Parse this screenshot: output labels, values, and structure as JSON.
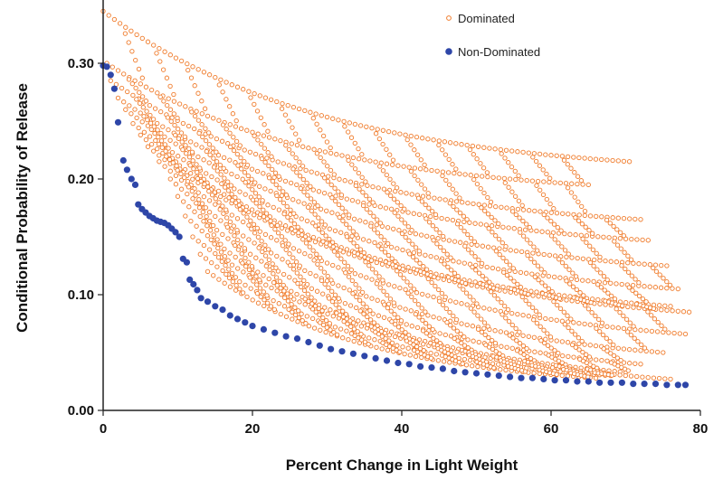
{
  "chart_data": {
    "type": "scatter",
    "title": "",
    "xlabel": "Percent Change in Light Weight",
    "ylabel": "Conditional Probability of Release",
    "xlim": [
      0,
      80
    ],
    "ylim": [
      0,
      0.35
    ],
    "x_ticks": [
      0,
      20,
      40,
      60,
      80
    ],
    "x_tick_labels": [
      "0",
      "20",
      "40",
      "60",
      "80"
    ],
    "y_ticks": [
      0,
      0.1,
      0.2,
      0.3
    ],
    "y_tick_labels": [
      "0.00",
      "0.10",
      "0.20",
      "0.30"
    ],
    "grid": false,
    "legend_position": "top-right",
    "series": [
      {
        "name": "Dominated",
        "marker": "open-circle",
        "color": "#f07c2c",
        "groups": [
          {
            "x_start": 0.0,
            "x_end": 70.5,
            "y_start": 0.345,
            "y_end": 0.215
          },
          {
            "x_start": 0.5,
            "x_end": 65.0,
            "y_start": 0.3,
            "y_end": 0.195
          },
          {
            "x_start": 1.0,
            "x_end": 72.0,
            "y_start": 0.285,
            "y_end": 0.165
          },
          {
            "x_start": 2.0,
            "x_end": 73.0,
            "y_start": 0.27,
            "y_end": 0.147
          },
          {
            "x_start": 3.0,
            "x_end": 75.5,
            "y_start": 0.26,
            "y_end": 0.125
          },
          {
            "x_start": 4.0,
            "x_end": 77.0,
            "y_start": 0.248,
            "y_end": 0.105
          },
          {
            "x_start": 5.0,
            "x_end": 76.0,
            "y_start": 0.238,
            "y_end": 0.09
          },
          {
            "x_start": 6.0,
            "x_end": 78.5,
            "y_start": 0.228,
            "y_end": 0.085
          },
          {
            "x_start": 7.5,
            "x_end": 78.0,
            "y_start": 0.215,
            "y_end": 0.066
          },
          {
            "x_start": 9.0,
            "x_end": 75.0,
            "y_start": 0.2,
            "y_end": 0.05
          },
          {
            "x_start": 10.0,
            "x_end": 72.0,
            "y_start": 0.185,
            "y_end": 0.04
          },
          {
            "x_start": 11.0,
            "x_end": 70.0,
            "y_start": 0.168,
            "y_end": 0.033
          },
          {
            "x_start": 12.0,
            "x_end": 76.0,
            "y_start": 0.15,
            "y_end": 0.027
          },
          {
            "x_start": 13.0,
            "x_end": 68.0,
            "y_start": 0.135,
            "y_end": 0.03
          },
          {
            "x_start": 14.0,
            "x_end": 66.0,
            "y_start": 0.12,
            "y_end": 0.028
          }
        ]
      },
      {
        "name": "Non-Dominated",
        "marker": "filled-circle",
        "color": "#2e46a8",
        "points": [
          [
            0.0,
            0.298
          ],
          [
            0.5,
            0.297
          ],
          [
            1.0,
            0.29
          ],
          [
            1.5,
            0.278
          ],
          [
            2.0,
            0.249
          ],
          [
            2.7,
            0.216
          ],
          [
            3.2,
            0.208
          ],
          [
            3.8,
            0.2
          ],
          [
            4.3,
            0.195
          ],
          [
            4.7,
            0.178
          ],
          [
            5.2,
            0.174
          ],
          [
            5.7,
            0.171
          ],
          [
            6.2,
            0.168
          ],
          [
            6.7,
            0.166
          ],
          [
            7.2,
            0.164
          ],
          [
            7.7,
            0.163
          ],
          [
            8.2,
            0.162
          ],
          [
            8.7,
            0.16
          ],
          [
            9.2,
            0.157
          ],
          [
            9.7,
            0.154
          ],
          [
            10.2,
            0.15
          ],
          [
            10.7,
            0.131
          ],
          [
            11.2,
            0.128
          ],
          [
            11.6,
            0.113
          ],
          [
            12.1,
            0.109
          ],
          [
            12.6,
            0.104
          ],
          [
            13.1,
            0.097
          ],
          [
            14.0,
            0.094
          ],
          [
            15.0,
            0.09
          ],
          [
            16.0,
            0.087
          ],
          [
            17.0,
            0.082
          ],
          [
            18.0,
            0.079
          ],
          [
            19.0,
            0.076
          ],
          [
            20.0,
            0.073
          ],
          [
            21.5,
            0.07
          ],
          [
            23.0,
            0.067
          ],
          [
            24.5,
            0.064
          ],
          [
            26.0,
            0.062
          ],
          [
            27.5,
            0.059
          ],
          [
            29.0,
            0.056
          ],
          [
            30.5,
            0.053
          ],
          [
            32.0,
            0.051
          ],
          [
            33.5,
            0.049
          ],
          [
            35.0,
            0.047
          ],
          [
            36.5,
            0.045
          ],
          [
            38.0,
            0.043
          ],
          [
            39.5,
            0.041
          ],
          [
            41.0,
            0.04
          ],
          [
            42.5,
            0.038
          ],
          [
            44.0,
            0.037
          ],
          [
            45.5,
            0.036
          ],
          [
            47.0,
            0.034
          ],
          [
            48.5,
            0.033
          ],
          [
            50.0,
            0.032
          ],
          [
            51.5,
            0.031
          ],
          [
            53.0,
            0.03
          ],
          [
            54.5,
            0.029
          ],
          [
            56.0,
            0.028
          ],
          [
            57.5,
            0.028
          ],
          [
            59.0,
            0.027
          ],
          [
            60.5,
            0.026
          ],
          [
            62.0,
            0.026
          ],
          [
            63.5,
            0.025
          ],
          [
            65.0,
            0.025
          ],
          [
            66.5,
            0.024
          ],
          [
            68.0,
            0.024
          ],
          [
            69.5,
            0.024
          ],
          [
            71.0,
            0.023
          ],
          [
            72.5,
            0.023
          ],
          [
            74.0,
            0.023
          ],
          [
            75.5,
            0.022
          ],
          [
            77.0,
            0.022
          ],
          [
            78.0,
            0.022
          ]
        ]
      }
    ]
  }
}
